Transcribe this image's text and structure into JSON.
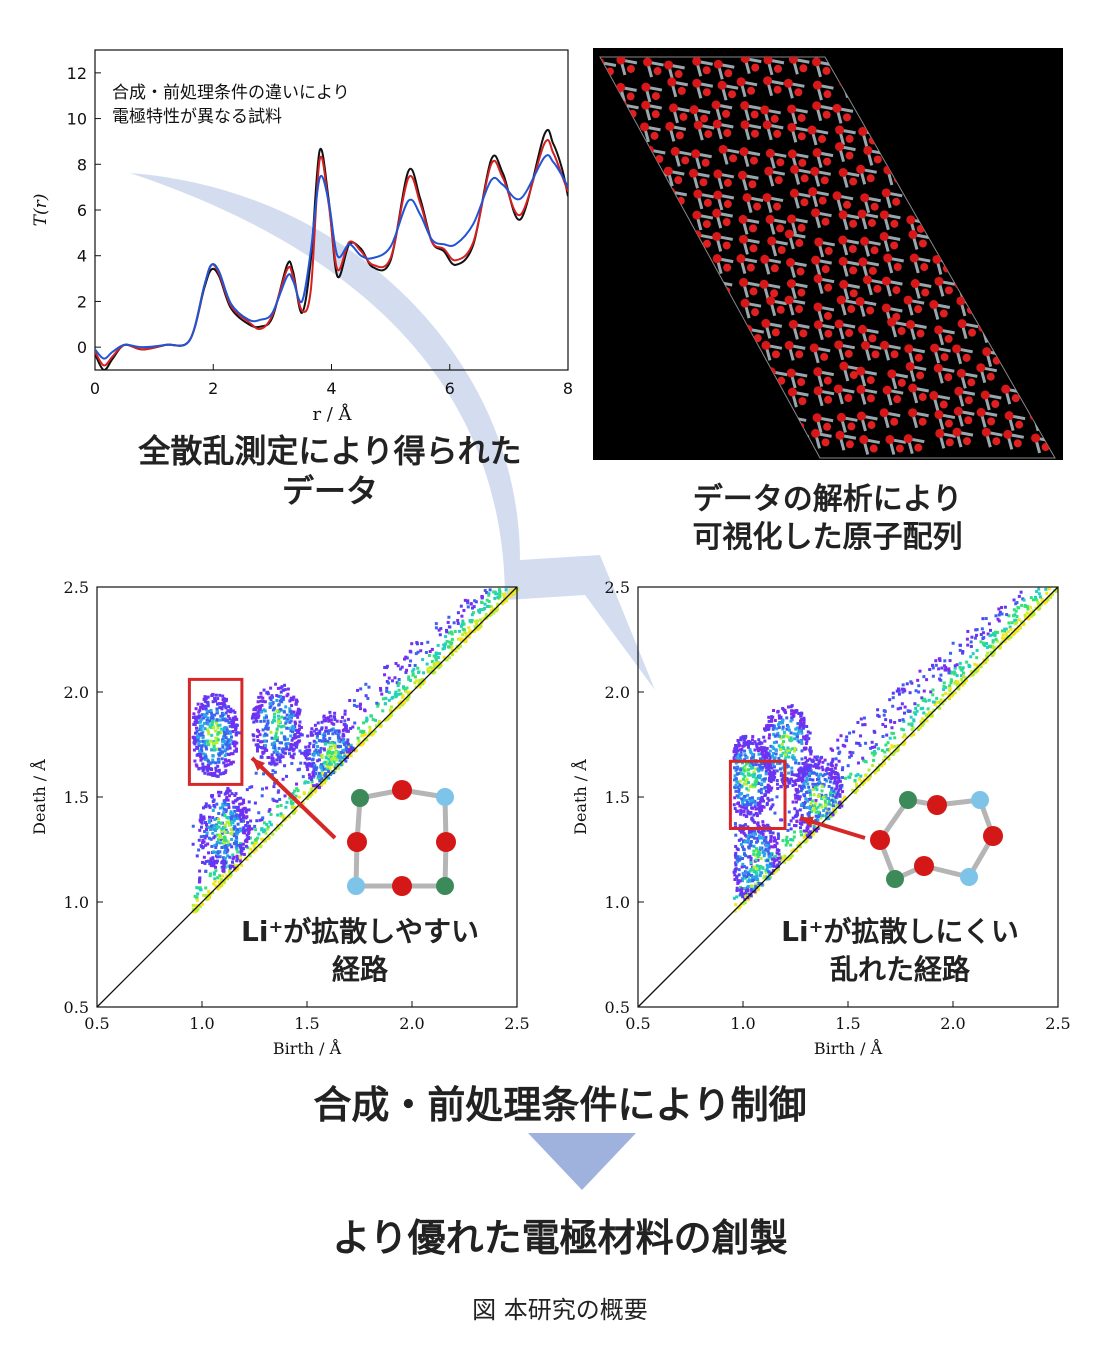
{
  "colors": {
    "black_curve": "#111111",
    "red_curve": "#d42020",
    "blue_curve": "#2155d6",
    "arrow": "#c9d3ec",
    "down_arrow": "#9fb2dd",
    "box": "#d62828",
    "atom_red": "#d41717",
    "atom_green": "#3c8a5a",
    "atom_cyan": "#7ec4e8",
    "bond": "#b5b5b5"
  },
  "captions": {
    "scatter_data_line1": "全散乱測定により得られた",
    "scatter_data_line2": "データ",
    "atom_line1": "データの解析により",
    "atom_line2": "可視化した原子配列",
    "easy_line1": "Li⁺が拡散しやすい",
    "easy_line2": "経路",
    "hard_line1": "Li⁺が拡散しにくい",
    "hard_line2": "乱れた経路",
    "control": "合成・前処理条件により制御",
    "result": "より優れた電極材料の創製",
    "figure": "図 本研究の概要"
  },
  "chart_data": [
    {
      "type": "line",
      "xlabel": "r / Å",
      "ylabel": "T(r)",
      "xlim": [
        0,
        8
      ],
      "ylim": [
        -1,
        13
      ],
      "xticks": [
        0,
        2,
        4,
        6,
        8
      ],
      "yticks": [
        0,
        2,
        4,
        6,
        8,
        10,
        12
      ],
      "annotation": [
        "合成・前処理条件の違いにより",
        "電極特性が異なる試料"
      ],
      "series": [
        {
          "color": "black",
          "x": [
            0,
            0.15,
            0.3,
            0.5,
            0.8,
            1.2,
            1.6,
            1.85,
            1.97,
            2.1,
            2.3,
            2.6,
            2.8,
            3.0,
            3.25,
            3.35,
            3.5,
            3.65,
            3.8,
            3.95,
            4.1,
            4.3,
            4.5,
            4.7,
            5.0,
            5.3,
            5.5,
            5.7,
            5.9,
            6.1,
            6.4,
            6.7,
            6.9,
            7.2,
            7.6,
            7.75,
            7.9,
            8.0
          ],
          "y": [
            -0.3,
            -1.0,
            -0.5,
            0.1,
            -0.1,
            0.1,
            0.3,
            2.6,
            3.4,
            3.1,
            1.7,
            1.0,
            0.9,
            1.3,
            3.6,
            3.3,
            1.5,
            3.8,
            8.6,
            6.5,
            3.1,
            4.5,
            4.3,
            3.5,
            3.8,
            7.7,
            6.5,
            4.6,
            4.2,
            3.6,
            4.5,
            8.2,
            7.6,
            5.6,
            9.3,
            8.9,
            7.8,
            6.6
          ]
        },
        {
          "color": "red",
          "x": [
            0,
            0.15,
            0.3,
            0.5,
            0.8,
            1.2,
            1.6,
            1.85,
            1.97,
            2.1,
            2.3,
            2.6,
            2.8,
            3.0,
            3.25,
            3.35,
            3.5,
            3.65,
            3.8,
            3.95,
            4.1,
            4.3,
            4.5,
            4.7,
            5.0,
            5.3,
            5.5,
            5.7,
            5.9,
            6.1,
            6.4,
            6.7,
            6.9,
            7.2,
            7.6,
            7.75,
            7.9,
            8.0
          ],
          "y": [
            -0.2,
            -0.8,
            -0.4,
            0.1,
            -0.1,
            0.1,
            0.3,
            2.7,
            3.6,
            3.2,
            1.8,
            1.1,
            0.8,
            1.4,
            3.4,
            3.1,
            1.6,
            2.5,
            8.2,
            6.3,
            3.4,
            4.6,
            4.2,
            3.6,
            3.9,
            7.4,
            6.3,
            4.6,
            4.3,
            3.8,
            4.6,
            8.0,
            7.4,
            5.8,
            8.9,
            8.5,
            7.5,
            6.8
          ]
        },
        {
          "color": "blue",
          "x": [
            0,
            0.15,
            0.3,
            0.5,
            0.8,
            1.2,
            1.6,
            1.85,
            1.97,
            2.1,
            2.3,
            2.6,
            2.8,
            3.0,
            3.25,
            3.35,
            3.5,
            3.65,
            3.8,
            3.95,
            4.1,
            4.3,
            4.5,
            4.7,
            5.0,
            5.3,
            5.5,
            5.7,
            5.9,
            6.1,
            6.4,
            6.7,
            6.9,
            7.2,
            7.6,
            7.75,
            7.9,
            8.0
          ],
          "y": [
            -0.1,
            -0.5,
            -0.2,
            0.1,
            0.0,
            0.1,
            0.3,
            2.7,
            3.6,
            3.3,
            1.9,
            1.2,
            1.2,
            1.5,
            3.1,
            2.9,
            2.0,
            4.2,
            7.4,
            6.4,
            4.0,
            4.5,
            4.0,
            3.9,
            4.4,
            6.4,
            5.8,
            4.7,
            4.5,
            4.5,
            5.4,
            7.3,
            7.1,
            6.5,
            8.3,
            8.1,
            7.5,
            7.0
          ]
        }
      ]
    },
    {
      "type": "heatmap",
      "xlabel": "Birth / Å",
      "ylabel": "Death / Å",
      "xlim": [
        0.5,
        2.5
      ],
      "ylim": [
        0.5,
        2.5
      ],
      "ticks": [
        0.5,
        1.0,
        1.5,
        2.0,
        2.5
      ],
      "clusters": [
        {
          "x": 1.05,
          "y": 1.8
        },
        {
          "x": 1.35,
          "y": 1.85
        },
        {
          "x": 1.1,
          "y": 1.35
        },
        {
          "x": 1.6,
          "y": 1.7
        }
      ],
      "highlight_box": {
        "x": [
          0.94,
          1.19
        ],
        "y": [
          1.56,
          2.06
        ]
      }
    },
    {
      "type": "heatmap",
      "xlabel": "Birth / Å",
      "ylabel": "Death / Å",
      "xlim": [
        0.5,
        2.5
      ],
      "ylim": [
        0.5,
        2.5
      ],
      "ticks": [
        0.5,
        1.0,
        1.5,
        2.0,
        2.5
      ],
      "clusters": [
        {
          "x": 1.02,
          "y": 1.6
        },
        {
          "x": 1.2,
          "y": 1.75
        },
        {
          "x": 1.35,
          "y": 1.5
        },
        {
          "x": 1.05,
          "y": 1.2
        }
      ],
      "highlight_box": {
        "x": [
          0.94,
          1.2
        ],
        "y": [
          1.35,
          1.67
        ]
      }
    }
  ]
}
